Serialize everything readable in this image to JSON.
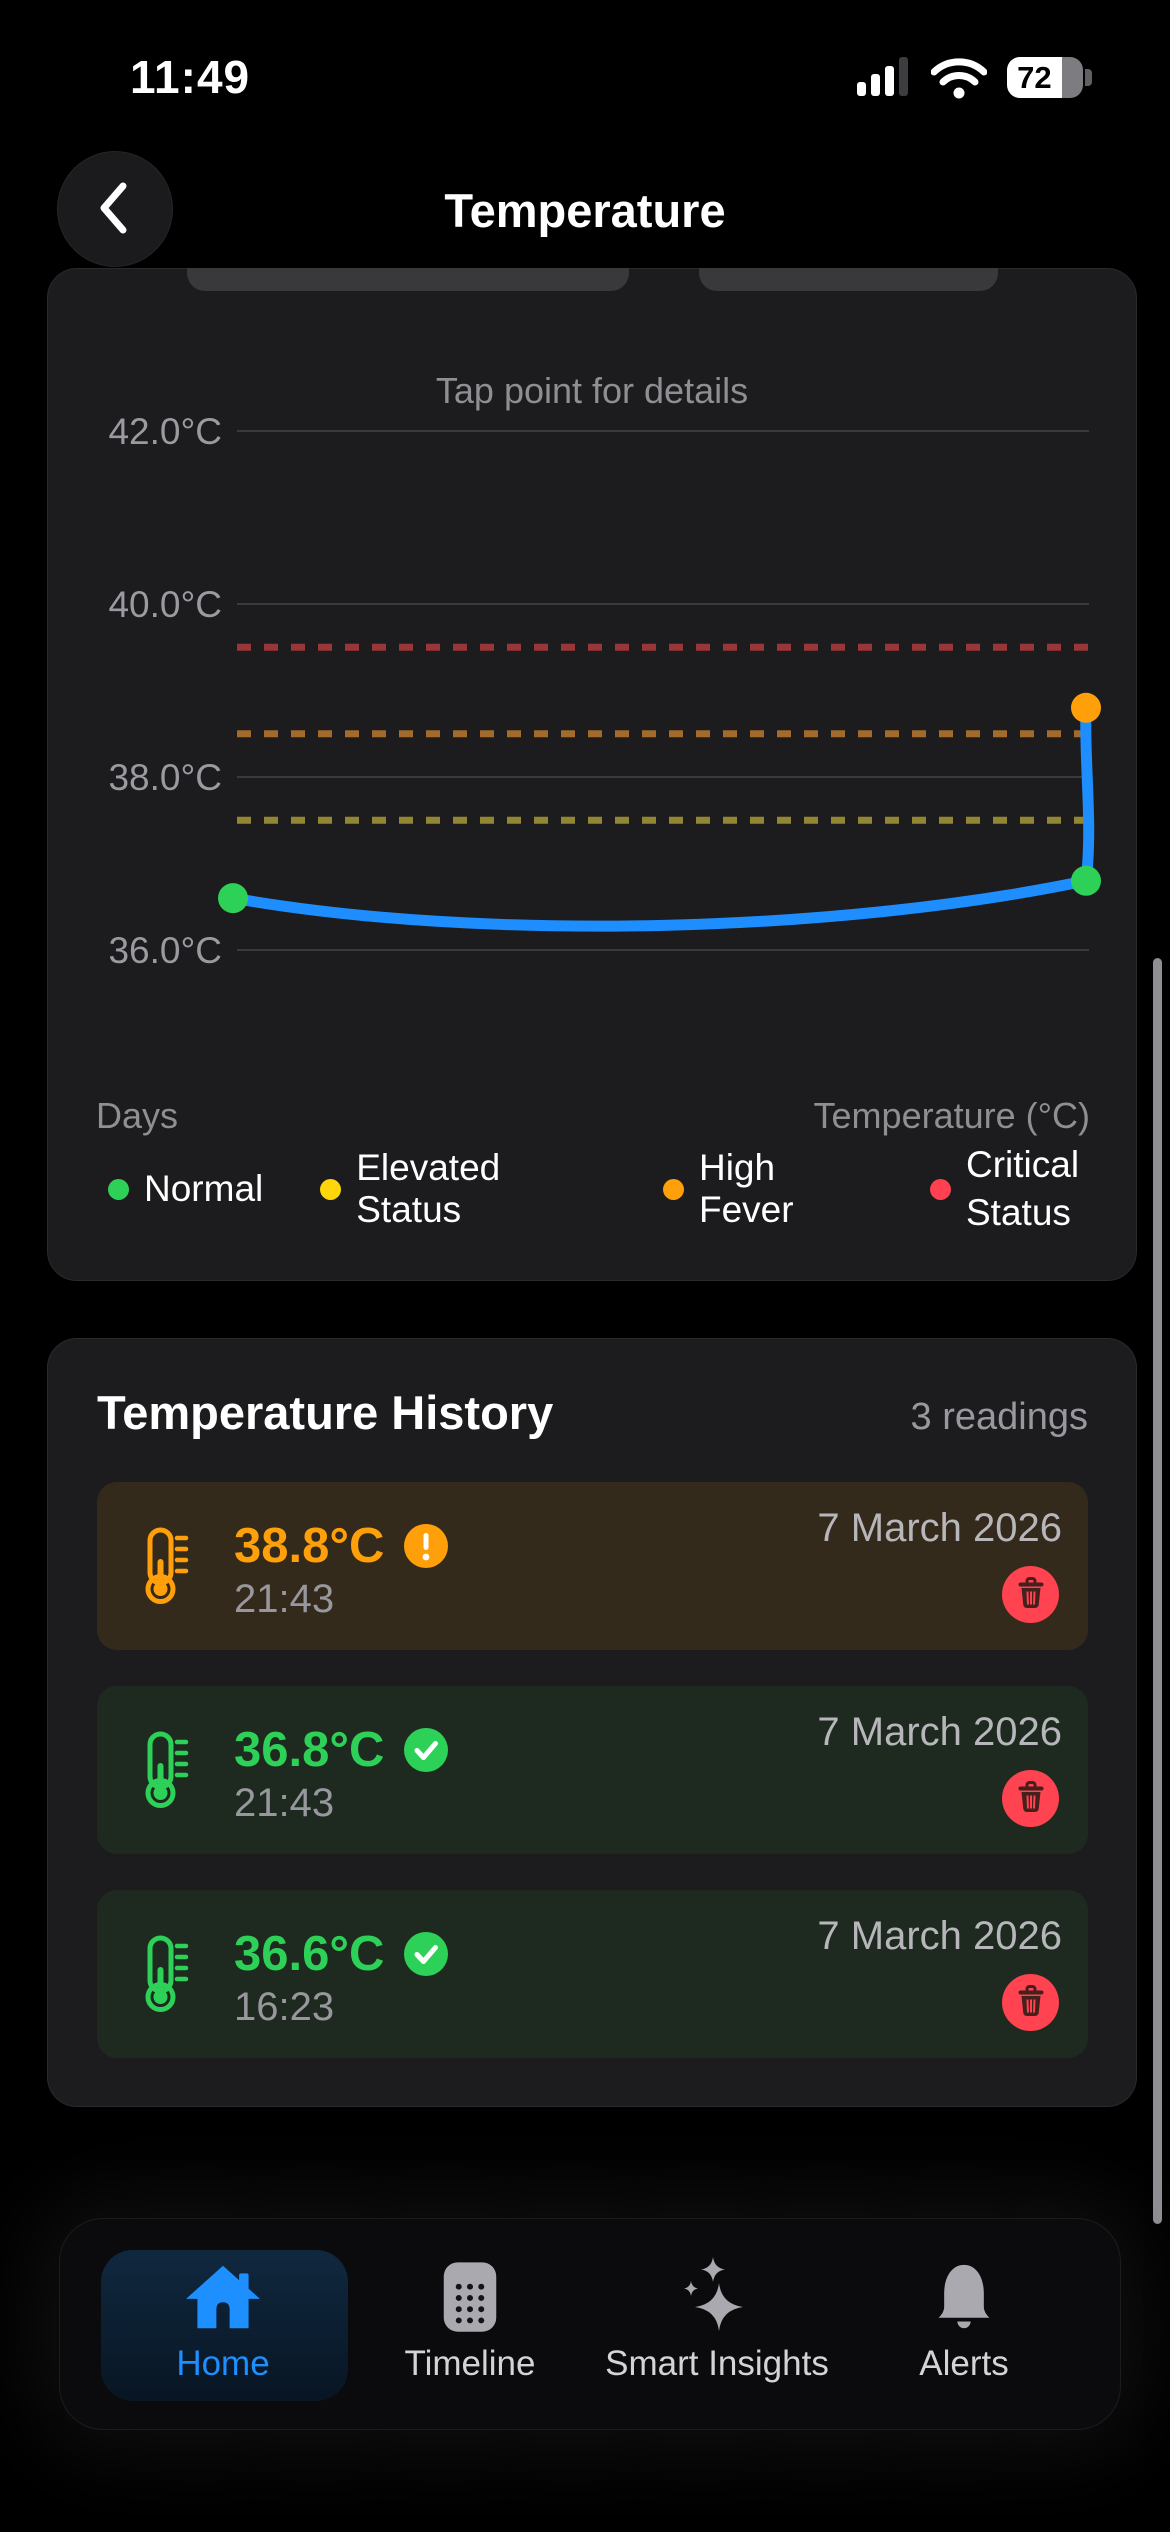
{
  "status_bar": {
    "time": "11:49",
    "battery_percent": "72"
  },
  "header": {
    "title": "Temperature"
  },
  "chart_card": {
    "hint": "Tap point for details"
  },
  "chart_data": {
    "type": "line",
    "title": "Tap point for details",
    "xlabel": "Days",
    "ylabel": "Temperature (°C)",
    "ylim": [
      35.4,
      43.0
    ],
    "grid": true,
    "y_ticks": [
      {
        "value": 42.0,
        "label": "42.0°C"
      },
      {
        "value": 40.0,
        "label": "40.0°C"
      },
      {
        "value": 38.0,
        "label": "38.0°C"
      },
      {
        "value": 36.0,
        "label": "36.0°C"
      }
    ],
    "thresholds": [
      {
        "name": "critical",
        "value": 39.5,
        "color": "#99363a",
        "style": "dashed"
      },
      {
        "name": "high-fever",
        "value": 38.5,
        "color": "#a26a2b",
        "style": "dashed"
      },
      {
        "name": "elevated",
        "value": 37.5,
        "color": "#918631",
        "style": "dashed"
      }
    ],
    "series": [
      {
        "name": "temperature-readings",
        "color": "#1e8eff",
        "points": [
          {
            "x_frac": 0.0,
            "value": 36.6,
            "status": "normal",
            "color": "#2ed158"
          },
          {
            "x_frac": 1.0,
            "value": 36.8,
            "status": "normal",
            "color": "#2ed158"
          },
          {
            "x_frac": 1.0,
            "value": 38.8,
            "status": "high-fever",
            "color": "#ff9f0a"
          }
        ]
      }
    ],
    "legend": [
      {
        "label": "Normal",
        "color": "#2ed158"
      },
      {
        "label": "Elevated Status",
        "color": "#ffd60a"
      },
      {
        "label": "High Fever",
        "color": "#ff9f0a"
      },
      {
        "label": "Critical Status",
        "color": "#ff4050"
      }
    ],
    "legend_position": "bottom"
  },
  "history": {
    "title": "Temperature History",
    "count_label": "3 readings",
    "readings": [
      {
        "temp": "38.8°C",
        "time": "21:43",
        "date": "7 March 2026",
        "status": "warning"
      },
      {
        "temp": "36.8°C",
        "time": "21:43",
        "date": "7 March 2026",
        "status": "ok"
      },
      {
        "temp": "36.6°C",
        "time": "16:23",
        "date": "7 March 2026",
        "status": "ok"
      }
    ]
  },
  "tab_bar": {
    "items": [
      {
        "label": "Home",
        "icon": "home-icon",
        "active": true
      },
      {
        "label": "Timeline",
        "icon": "timeline-icon",
        "active": false
      },
      {
        "label": "Smart Insights",
        "icon": "sparkles-icon",
        "active": false
      },
      {
        "label": "Alerts",
        "icon": "bell-icon",
        "active": false
      }
    ]
  }
}
